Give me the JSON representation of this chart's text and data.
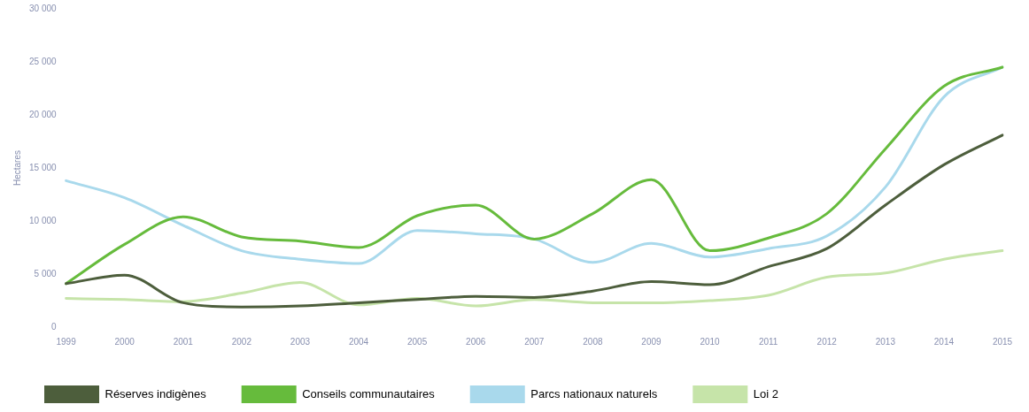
{
  "chart_data": {
    "type": "line",
    "ylabel": "Hectares",
    "categories": [
      "1999",
      "2000",
      "2001",
      "2002",
      "2003",
      "2004",
      "2005",
      "2006",
      "2007",
      "2008",
      "2009",
      "2010",
      "2011",
      "2012",
      "2013",
      "2014",
      "2015"
    ],
    "series": [
      {
        "name": "Réserves indigènes",
        "color": "#4d5e3c",
        "values": [
          4100,
          4900,
          2300,
          1900,
          2000,
          2300,
          2600,
          2900,
          2800,
          3400,
          4300,
          4000,
          5700,
          7400,
          11500,
          15300,
          18100
        ]
      },
      {
        "name": "Conseils communautaires",
        "color": "#66bb3c",
        "values": [
          4100,
          7800,
          10400,
          8500,
          8100,
          7500,
          10500,
          11500,
          8300,
          10700,
          13900,
          7200,
          8400,
          10700,
          16800,
          22700,
          24500
        ]
      },
      {
        "name": "Parcs nationaux naturels",
        "color": "#a9d9ec",
        "values": [
          13800,
          12200,
          9600,
          7200,
          6400,
          6000,
          9100,
          8800,
          8300,
          6100,
          7900,
          6600,
          7400,
          8600,
          13200,
          21700,
          24500
        ]
      },
      {
        "name": "Loi 2",
        "color": "#c6e4a9",
        "values": [
          2700,
          2600,
          2400,
          3200,
          4200,
          2100,
          2700,
          2000,
          2600,
          2300,
          2300,
          2500,
          3000,
          4700,
          5100,
          6400,
          7200
        ]
      }
    ],
    "ylim": [
      0,
      30000
    ],
    "yticks": [
      {
        "value": 0,
        "label": "0"
      },
      {
        "value": 5000,
        "label": "5 000"
      },
      {
        "value": 10000,
        "label": "10 000"
      },
      {
        "value": 15000,
        "label": "15 000"
      },
      {
        "value": 20000,
        "label": "20 000"
      },
      {
        "value": 25000,
        "label": "25 000"
      },
      {
        "value": 30000,
        "label": "30 000"
      }
    ],
    "grid": false,
    "legend": "bottom",
    "marker": "none",
    "line_style": "solid"
  }
}
